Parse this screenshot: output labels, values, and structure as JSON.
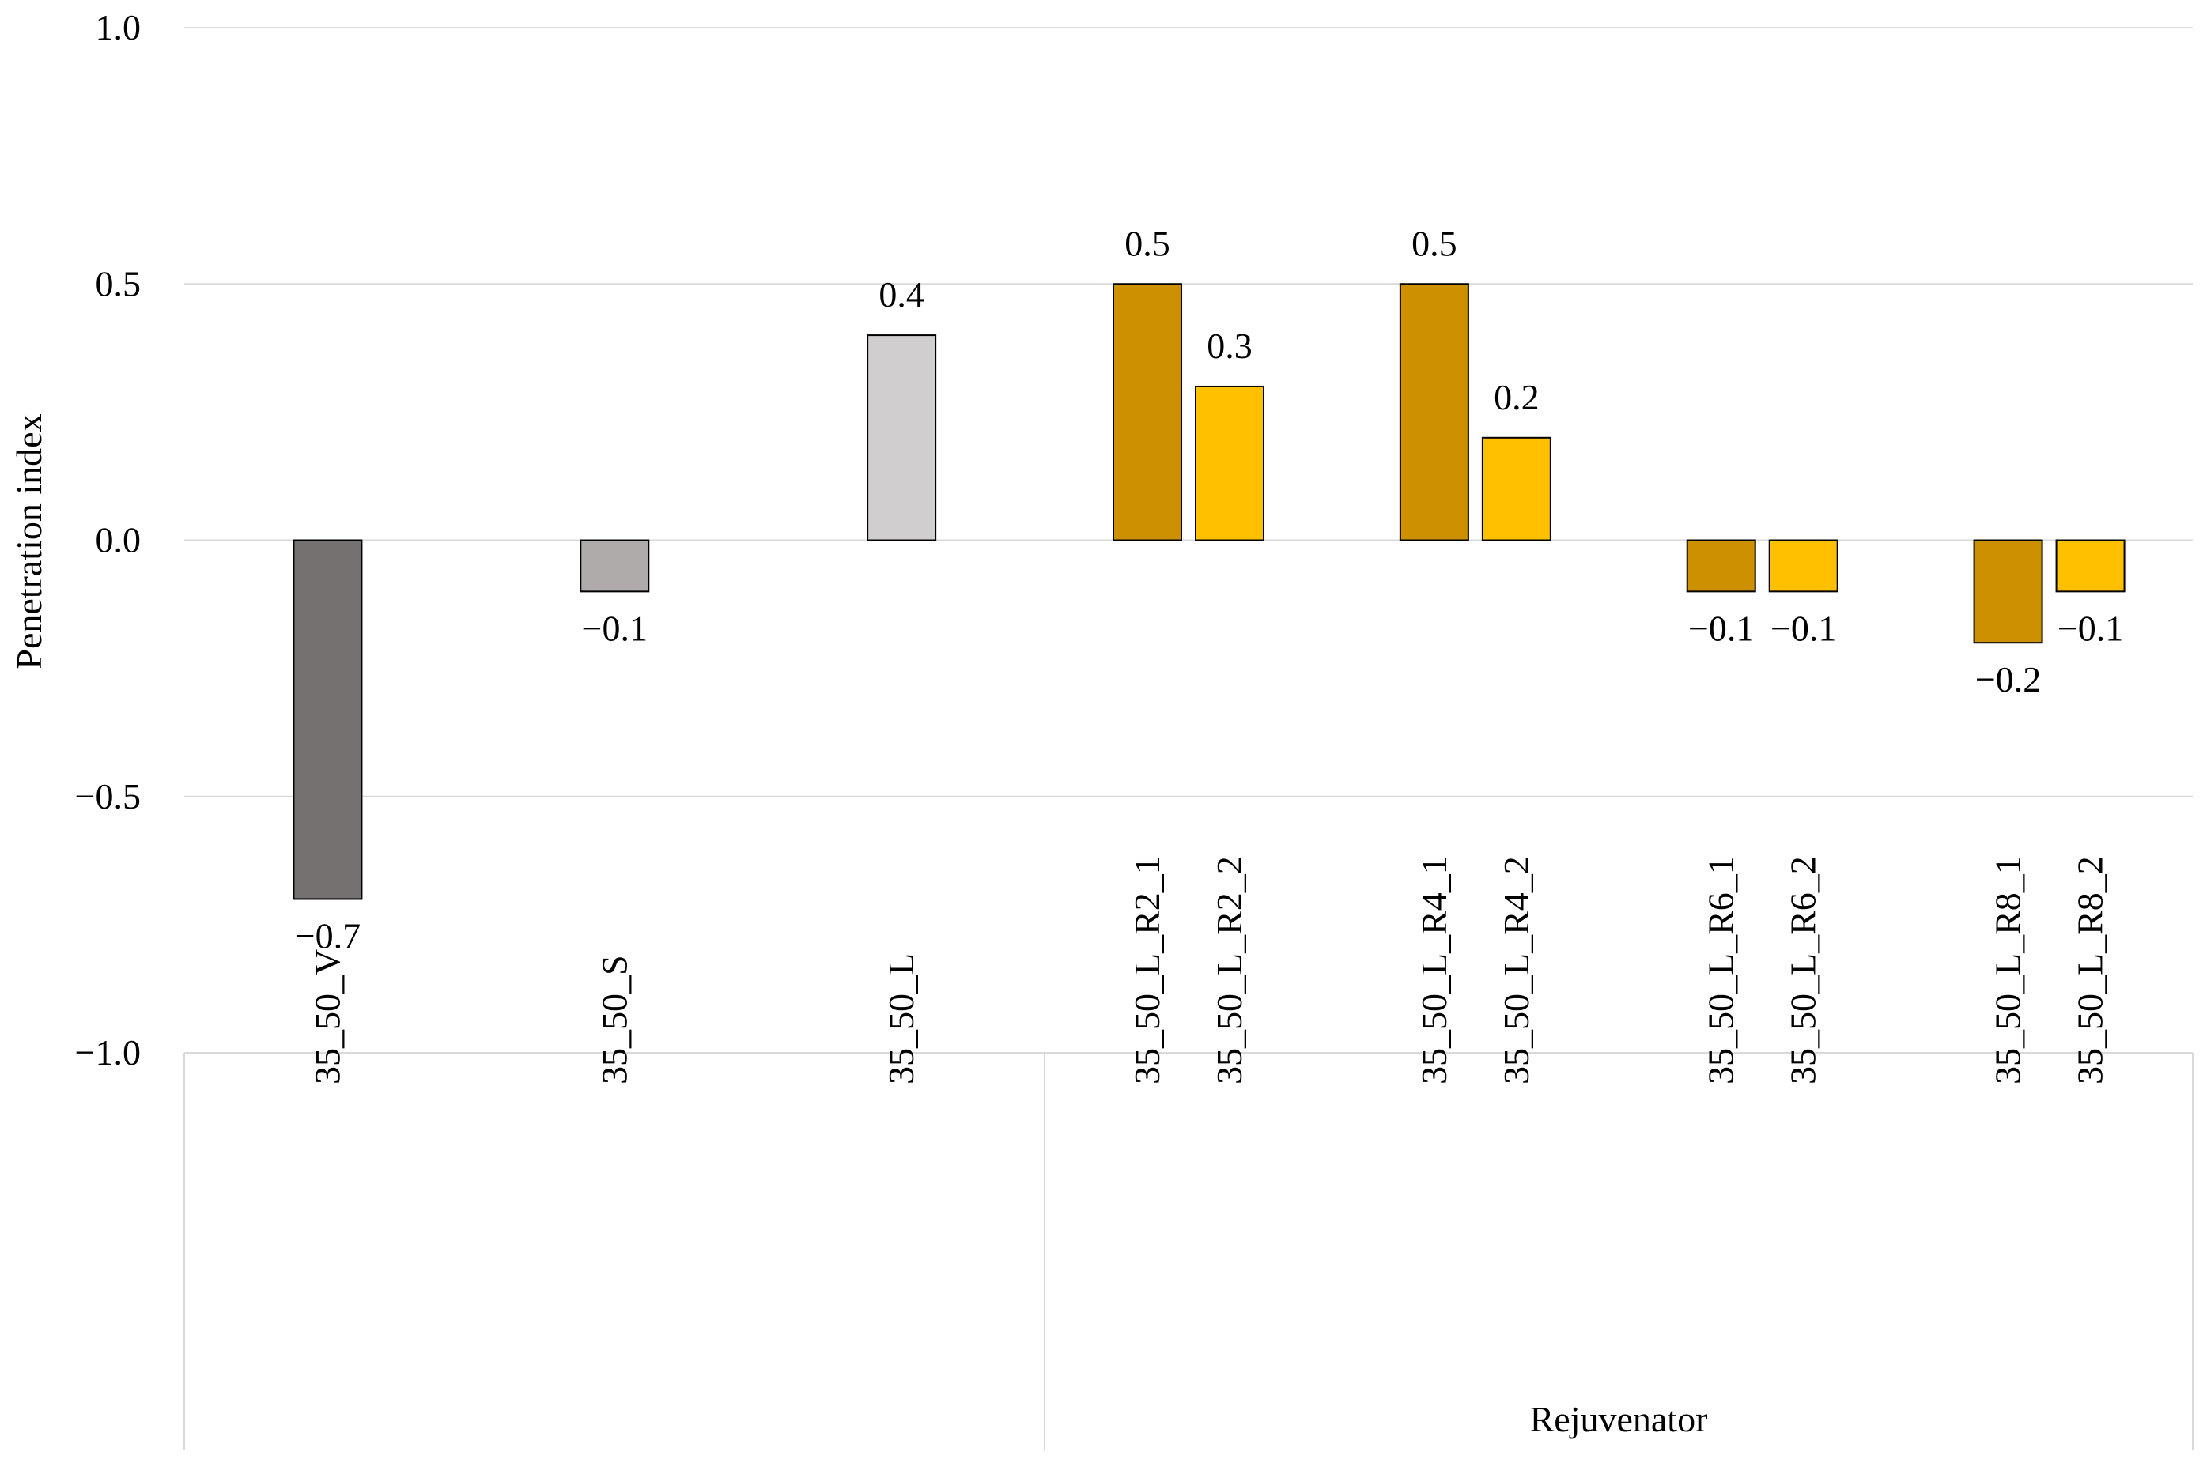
{
  "chart_data": {
    "type": "bar",
    "ylabel": "Penetration index",
    "group_label": "Rejuvenator",
    "ylim": [
      -1.0,
      1.0
    ],
    "yticks": [
      1.0,
      0.5,
      0.0,
      -0.5,
      -1.0
    ],
    "ytick_labels": [
      "1.0",
      "0.5",
      "0.0",
      "−0.5",
      "−1.0"
    ],
    "grid": true,
    "legend": "none",
    "bars": [
      {
        "label": "35_50_V",
        "value": -0.7,
        "value_label": "−0.7",
        "color": "#767171",
        "group": 0
      },
      {
        "label": "35_50_S",
        "value": -0.1,
        "value_label": "−0.1",
        "color": "#AFABAB",
        "group": 1
      },
      {
        "label": "35_50_L",
        "value": 0.4,
        "value_label": "0.4",
        "color": "#D0CECE",
        "group": 2
      },
      {
        "label": "35_50_L_R2_1",
        "value": 0.5,
        "value_label": "0.5",
        "color": "#CC9000",
        "group": 3
      },
      {
        "label": "35_50_L_R2_2",
        "value": 0.3,
        "value_label": "0.3",
        "color": "#FFC000",
        "group": 3
      },
      {
        "label": "35_50_L_R4_1",
        "value": 0.5,
        "value_label": "0.5",
        "color": "#CC9000",
        "group": 4
      },
      {
        "label": "35_50_L_R4_2",
        "value": 0.2,
        "value_label": "0.2",
        "color": "#FFC000",
        "group": 4
      },
      {
        "label": "35_50_L_R6_1",
        "value": -0.1,
        "value_label": "−0.1",
        "color": "#CC9000",
        "group": 5
      },
      {
        "label": "35_50_L_R6_2",
        "value": -0.1,
        "value_label": "−0.1",
        "color": "#FFC000",
        "group": 5
      },
      {
        "label": "35_50_L_R8_1",
        "value": -0.2,
        "value_label": "−0.2",
        "color": "#CC9000",
        "group": 6
      },
      {
        "label": "35_50_L_R8_2",
        "value": -0.1,
        "value_label": "−0.1",
        "color": "#FFC000",
        "group": 6
      }
    ]
  }
}
